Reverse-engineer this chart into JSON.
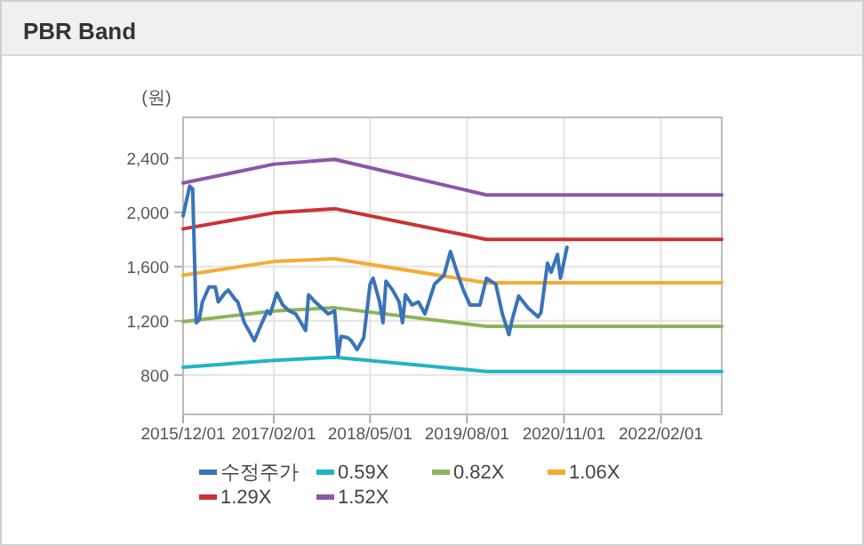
{
  "chart_data": {
    "type": "line",
    "title": "PBR Band",
    "ylabel": "(원)",
    "xlim": [
      "2015-12-01",
      "2022-11-15"
    ],
    "ylim": [
      510,
      2700
    ],
    "xticks": [
      {
        "value": "2015-12-01",
        "label": "2015/12/01"
      },
      {
        "value": "2017-02-01",
        "label": "2017/02/01"
      },
      {
        "value": "2018-05-01",
        "label": "2018/05/01"
      },
      {
        "value": "2019-08-01",
        "label": "2019/08/01"
      },
      {
        "value": "2020-11-01",
        "label": "2020/11/01"
      },
      {
        "value": "2022-02-01",
        "label": "2022/02/01"
      }
    ],
    "yticks": [
      800,
      {
        "value": 1200,
        "label": "1,200"
      },
      {
        "value": 1600,
        "label": "1,600"
      },
      {
        "value": 2000,
        "label": "2,000"
      },
      {
        "value": 2400,
        "label": "2,400"
      }
    ],
    "grid": true,
    "legend": "bottom",
    "marker": "none",
    "line_style": "solid",
    "series": [
      {
        "name": "수정주가",
        "color": "#3a73b8",
        "x": [
          "2015-12-01",
          "2016-01-01",
          "2016-01-15",
          "2016-02-01",
          "2016-02-15",
          "2016-03-01",
          "2016-04-01",
          "2016-05-01",
          "2016-05-15",
          "2016-06-15",
          "2016-07-01",
          "2016-08-01",
          "2016-08-15",
          "2016-09-15",
          "2016-11-01",
          "2016-12-01",
          "2017-01-01",
          "2017-01-15",
          "2017-02-15",
          "2017-03-15",
          "2017-04-15",
          "2017-05-15",
          "2017-07-01",
          "2017-07-15",
          "2017-08-15",
          "2017-09-15",
          "2017-10-15",
          "2017-11-15",
          "2017-12-01",
          "2017-12-15",
          "2018-01-15",
          "2018-02-01",
          "2018-03-01",
          "2018-04-01",
          "2018-05-01",
          "2018-05-15",
          "2018-06-15",
          "2018-07-01",
          "2018-07-15",
          "2018-08-15",
          "2018-09-15",
          "2018-10-01",
          "2018-10-15",
          "2018-11-15",
          "2018-12-15",
          "2019-01-15",
          "2019-03-01",
          "2019-04-15",
          "2019-05-15",
          "2019-06-15",
          "2019-07-15",
          "2019-08-15",
          "2019-10-01",
          "2019-11-01",
          "2019-12-15",
          "2020-01-15",
          "2020-02-15",
          "2020-03-01",
          "2020-04-01",
          "2020-05-15",
          "2020-07-01",
          "2020-07-15",
          "2020-08-15",
          "2020-09-01",
          "2020-10-01",
          "2020-10-15",
          "2020-11-15"
        ],
        "values": [
          1974,
          2193,
          2172,
          1186,
          1208,
          1339,
          1449,
          1449,
          1339,
          1405,
          1427,
          1361,
          1339,
          1186,
          1054,
          1164,
          1273,
          1251,
          1405,
          1317,
          1273,
          1251,
          1129,
          1392,
          1339,
          1295,
          1251,
          1273,
          945,
          1085,
          1076,
          1054,
          988,
          1076,
          1470,
          1514,
          1339,
          1186,
          1492,
          1427,
          1339,
          1186,
          1392,
          1317,
          1339,
          1251,
          1470,
          1536,
          1711,
          1558,
          1427,
          1317,
          1317,
          1514,
          1470,
          1251,
          1098,
          1207,
          1383,
          1295,
          1229,
          1260,
          1624,
          1558,
          1689,
          1514,
          1742
        ]
      },
      {
        "name": "0.59X",
        "color": "#1fb5c4",
        "x": [
          "2015-12-01",
          "2017-02-01",
          "2017-11-15",
          "2019-11-01",
          "2022-11-15"
        ],
        "values": [
          857,
          909,
          932,
          826,
          826
        ]
      },
      {
        "name": "0.82X",
        "color": "#8db35a",
        "x": [
          "2015-12-01",
          "2017-02-01",
          "2017-11-15",
          "2019-11-01",
          "2022-11-15"
        ],
        "values": [
          1194,
          1273,
          1296,
          1159,
          1159
        ]
      },
      {
        "name": "1.06X",
        "color": "#f5ab35",
        "x": [
          "2015-12-01",
          "2017-02-01",
          "2017-11-15",
          "2019-11-01",
          "2022-11-15"
        ],
        "values": [
          1536,
          1637,
          1658,
          1480,
          1480
        ]
      },
      {
        "name": "1.29X",
        "color": "#cc3333",
        "x": [
          "2015-12-01",
          "2017-02-01",
          "2017-11-15",
          "2019-11-01",
          "2022-11-15"
        ],
        "values": [
          1878,
          1996,
          2027,
          1800,
          1800
        ]
      },
      {
        "name": "1.52X",
        "color": "#8e55a8",
        "x": [
          "2015-12-01",
          "2017-02-01",
          "2017-11-15",
          "2019-11-01",
          "2022-11-15"
        ],
        "values": [
          2216,
          2355,
          2390,
          2128,
          2128
        ]
      }
    ]
  }
}
